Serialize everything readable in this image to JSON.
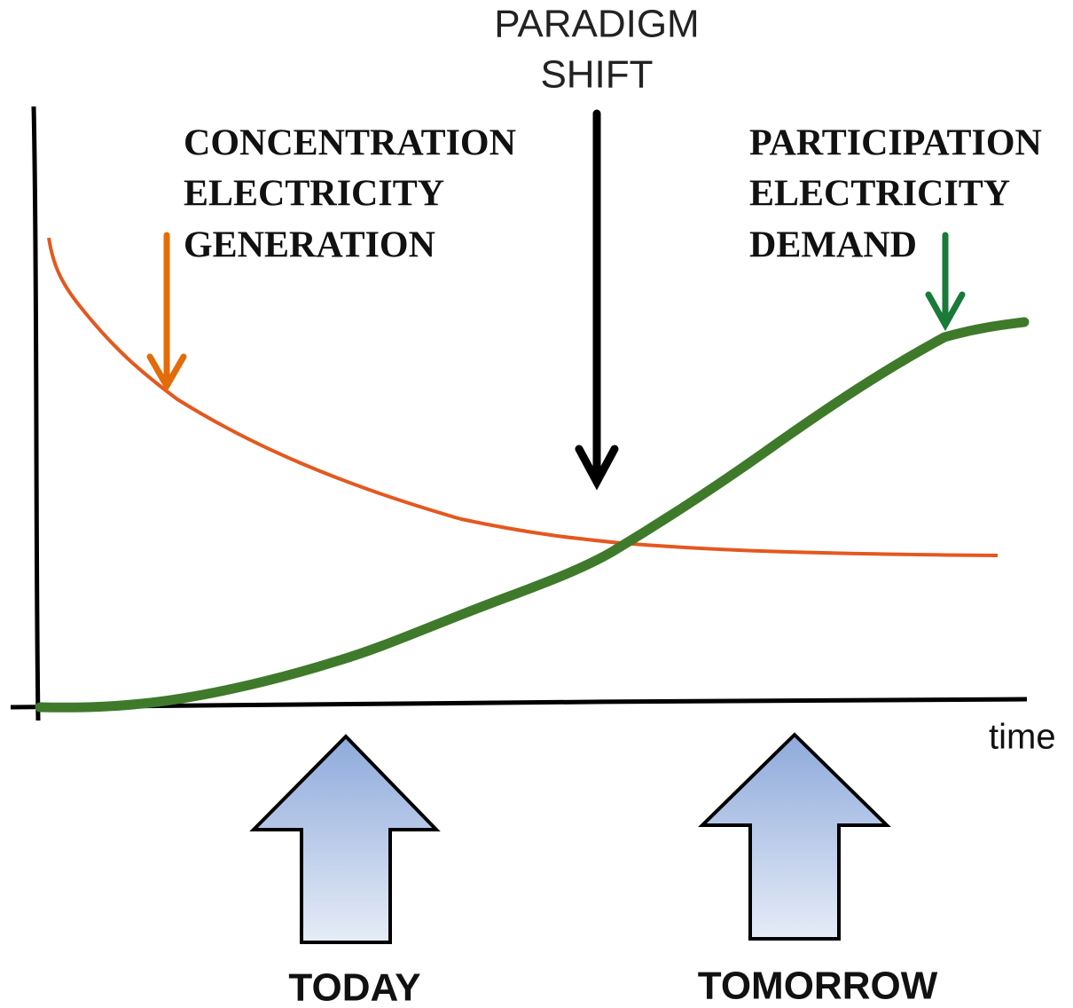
{
  "title": {
    "lines": [
      "PARADIGM",
      "SHIFT"
    ]
  },
  "annotations": [
    {
      "lines": [
        "CONCENTRATION",
        "ELECTRICITY",
        "GENERATION"
      ]
    },
    {
      "lines": [
        "PARTICIPATION",
        "ELECTRICITY",
        "DEMAND"
      ]
    }
  ],
  "axis": {
    "x_label": "time"
  },
  "markers": [
    {
      "label": "TODAY"
    },
    {
      "label": "TOMORROW"
    }
  ]
}
